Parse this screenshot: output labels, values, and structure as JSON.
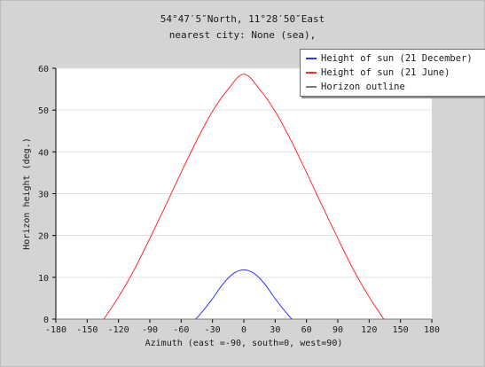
{
  "chart_data": {
    "type": "line",
    "title": "54°47′5″North, 11°28′50″East",
    "subtitle": "nearest city: None (sea),",
    "xlabel": "Azimuth (east =-90, south=0, west=90)",
    "ylabel": "Horizon height (deg.)",
    "xlim": [
      -180,
      180
    ],
    "ylim": [
      0,
      60
    ],
    "xticks": [
      -180,
      -150,
      -120,
      -90,
      -60,
      -30,
      0,
      30,
      60,
      90,
      120,
      150,
      180
    ],
    "yticks": [
      0,
      10,
      20,
      30,
      40,
      50,
      60
    ],
    "grid": "horizontal",
    "legend_position": "top-right",
    "colors": {
      "winter": "#3333ff",
      "summer": "#ff2a2a",
      "horizon": "#7a7a7a",
      "plot_bg": "#ffffff",
      "page_bg": "#d4d4d4",
      "grid": "#e0e0e0"
    },
    "series": [
      {
        "name": "Height of sun (21 December)",
        "color": "#3333ff",
        "x": [
          -46,
          -40,
          -30,
          -20,
          -10,
          0,
          10,
          20,
          30,
          40,
          46
        ],
        "y": [
          0,
          1.7,
          4.9,
          8.4,
          10.9,
          11.8,
          10.9,
          8.4,
          4.9,
          1.7,
          0
        ]
      },
      {
        "name": "Height of sun (21 June)",
        "color": "#ff2a2a",
        "x": [
          -134,
          -120,
          -105,
          -90,
          -75,
          -60,
          -45,
          -30,
          -15,
          0,
          15,
          30,
          45,
          60,
          75,
          90,
          105,
          120,
          134
        ],
        "y": [
          0,
          5.3,
          11.8,
          19.3,
          27.1,
          35.1,
          42.8,
          49.7,
          55.0,
          58.6,
          55.0,
          49.7,
          42.8,
          35.1,
          27.1,
          19.3,
          11.8,
          5.3,
          0
        ]
      },
      {
        "name": "Horizon outline",
        "color": "#7a7a7a",
        "x": [
          -180,
          180
        ],
        "y": [
          0,
          0
        ]
      }
    ]
  }
}
